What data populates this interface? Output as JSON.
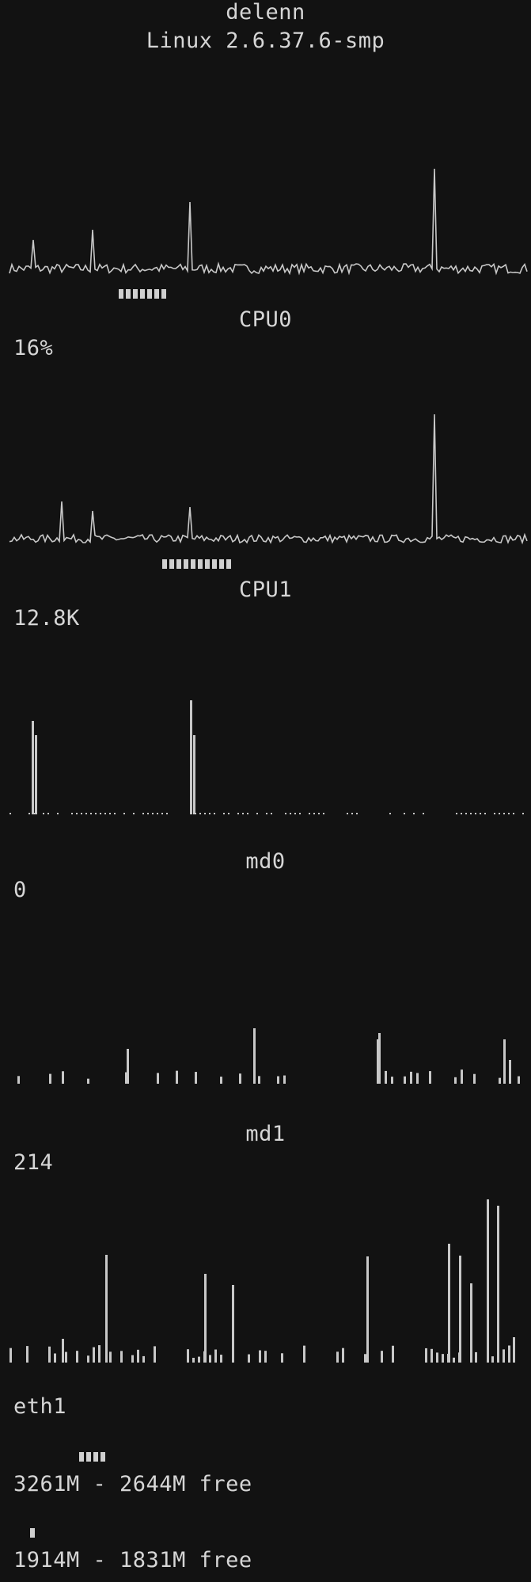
{
  "header": {
    "hostname": "delenn",
    "kernel": "Linux 2.6.37.6-smp"
  },
  "colors": {
    "background": "#121212",
    "foreground": "#d6d6d6",
    "graph": "#c8c8c8"
  },
  "panels": [
    {
      "id": "cpu0",
      "label": "CPU0",
      "value": "16%",
      "load_segments": 7
    },
    {
      "id": "cpu1",
      "label": "CPU1",
      "value": "12.8K",
      "load_segments": 10
    },
    {
      "id": "md0",
      "label": "md0",
      "value": "0"
    },
    {
      "id": "md1",
      "label": "md1",
      "value": "214"
    },
    {
      "id": "eth1",
      "label": "eth1"
    }
  ],
  "memory": {
    "ram_segments": 4,
    "ram_text": "3261M - 2644M free",
    "swap_segments": 1,
    "swap_text": "1914M - 1831M free"
  }
}
